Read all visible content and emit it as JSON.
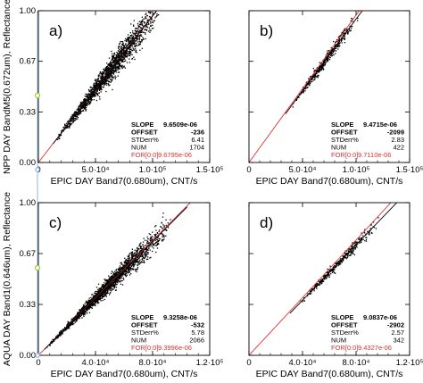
{
  "chart_data": [
    {
      "type": "scatter",
      "panel_label": "a)",
      "xlabel": "EPIC DAY Band7(0.680um), CNT/s",
      "ylabel": "NPP DAY BandM5(0.672um), Reflectance",
      "xlim": [
        0,
        150000
      ],
      "ylim": [
        0,
        1.0
      ],
      "x_ticks": [
        "0",
        "5.0·10⁴",
        "1.0·10⁵",
        "1.5·10⁵"
      ],
      "y_ticks": [
        "0.00",
        "0.33",
        "0.67",
        "1.00"
      ],
      "stats": {
        "slope": "9.6509e-06",
        "offset": "-236",
        "stderr": "6.41",
        "num": "1704",
        "for": "9.6795e-06"
      },
      "cluster": {
        "x_range": [
          15000,
          108000
        ],
        "n_points": 1704
      },
      "fit_line": {
        "slope": 9.6509e-06,
        "offset": -0.000236
      },
      "ref_line": {
        "slope": 9.6795e-06
      }
    },
    {
      "type": "scatter",
      "panel_label": "b)",
      "xlabel": "EPIC DAY Band7(0.680um), CNT/s",
      "ylabel": "",
      "xlim": [
        0,
        150000
      ],
      "ylim": [
        0,
        1.0
      ],
      "x_ticks": [
        "0",
        "5.0·10⁴",
        "1.0·10⁵",
        "1.5·10⁵"
      ],
      "y_ticks": [],
      "stats": {
        "slope": "9.4715e-06",
        "offset": "-2099",
        "stderr": "2.83",
        "num": "422",
        "for": "9.7110e-06"
      },
      "cluster": {
        "x_range": [
          40000,
          102000
        ],
        "n_points": 422
      },
      "fit_line": {
        "slope": 9.4715e-06,
        "offset": -0.002099
      },
      "ref_line": {
        "slope": 9.711e-06
      }
    },
    {
      "type": "scatter",
      "panel_label": "c)",
      "xlabel": "EPIC DAY Band7(0.680um), CNT/s",
      "ylabel": "AQUA DAY Band1(0.646um), Reflectance",
      "xlim": [
        0,
        120000
      ],
      "ylim": [
        0,
        1.0
      ],
      "x_ticks": [
        "0",
        "4.0·10⁴",
        "8.0·10⁴",
        "1.2·10⁵"
      ],
      "y_ticks": [
        "0.00",
        "0.33",
        "0.67",
        "1.00"
      ],
      "stats": {
        "slope": "9.3258e-06",
        "offset": "-532",
        "stderr": "5.78",
        "num": "2066",
        "for": "9.3996e-06"
      },
      "cluster": {
        "x_range": [
          5000,
          93000
        ],
        "n_points": 2066
      },
      "fit_line": {
        "slope": 9.3258e-06,
        "offset": -0.000532
      },
      "ref_line": {
        "slope": 9.3996e-06
      }
    },
    {
      "type": "scatter",
      "panel_label": "d)",
      "xlabel": "EPIC DAY Band7(0.680um), CNT/s",
      "ylabel": "",
      "xlim": [
        0,
        120000
      ],
      "ylim": [
        0,
        1.0
      ],
      "x_ticks": [
        "0",
        "4.0·10⁴",
        "8.0·10⁴",
        "1.2·10⁵"
      ],
      "y_ticks": [],
      "stats": {
        "slope": "9.0837e-06",
        "offset": "-2902",
        "stderr": "2.57",
        "num": "342",
        "for": "9.4327e-06"
      },
      "cluster": {
        "x_range": [
          36000,
          100000
        ],
        "n_points": 342
      },
      "fit_line": {
        "slope": 9.0837e-06,
        "offset": -0.002902
      },
      "ref_line": {
        "slope": 9.4327e-06
      }
    }
  ],
  "stat_labels": {
    "slope": "SLOPE",
    "offset": "OFFSET",
    "stderr": "STDerr%",
    "num": "NUM",
    "for": "FOR[0:0]"
  },
  "colors": {
    "points": "#000000",
    "fit_line": "#000000",
    "ref_line": "#e03030",
    "side_axis": "#8fb3d9",
    "side_marker": "#9acd32"
  }
}
